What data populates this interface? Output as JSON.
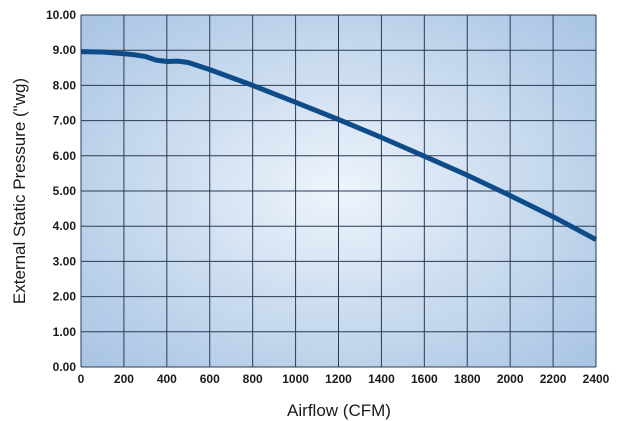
{
  "chart_data": {
    "type": "line",
    "title": "",
    "xlabel": "Airflow (CFM)",
    "ylabel": "External Static Pressure (\"wg)",
    "xlim": [
      0,
      2400
    ],
    "ylim": [
      0,
      10
    ],
    "x_ticks": [
      "0",
      "200",
      "400",
      "600",
      "800",
      "1000",
      "1200",
      "1400",
      "1600",
      "1800",
      "2000",
      "2200",
      "2400"
    ],
    "y_ticks": [
      "0.00",
      "1.00",
      "2.00",
      "3.00",
      "4.00",
      "5.00",
      "6.00",
      "7.00",
      "8.00",
      "9.00",
      "10.00"
    ],
    "grid": true,
    "series": [
      {
        "x": [
          0,
          100,
          200,
          250,
          300,
          350,
          400,
          450,
          500,
          600,
          800,
          1000,
          1200,
          1400,
          1600,
          1800,
          2000,
          2200,
          2400
        ],
        "y": [
          8.96,
          8.95,
          8.9,
          8.87,
          8.82,
          8.72,
          8.68,
          8.69,
          8.65,
          8.45,
          8.0,
          7.52,
          7.03,
          6.52,
          5.99,
          5.45,
          4.87,
          4.27,
          3.62
        ]
      }
    ],
    "colors": {
      "line": "#0e4c89",
      "plot_center": "#eef4fb",
      "plot_edge": "#a8c4e3",
      "grid": "#2a3a55"
    }
  }
}
